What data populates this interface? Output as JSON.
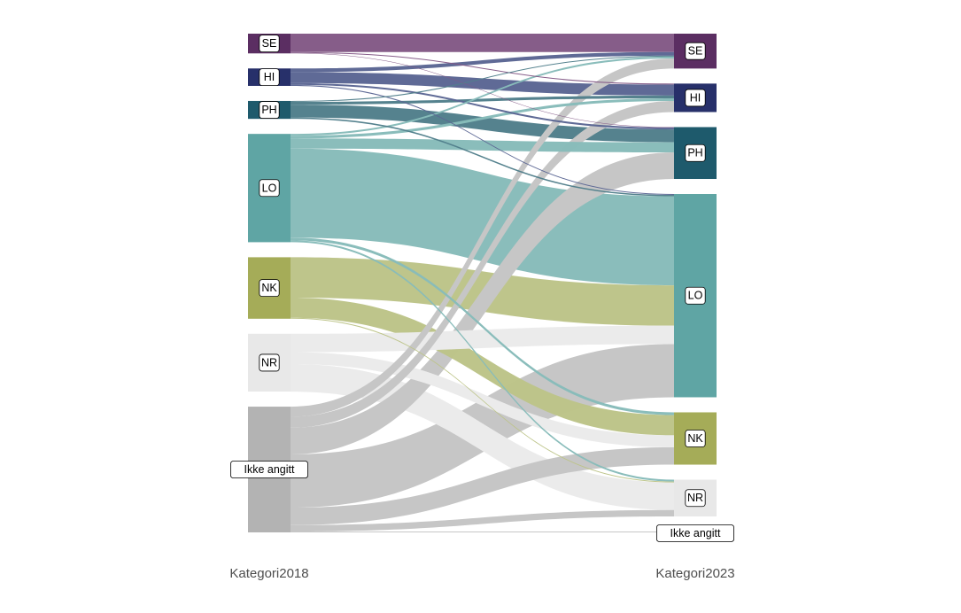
{
  "chart_data": {
    "type": "sankey",
    "axes": [
      "Kategori2018",
      "Kategori2023"
    ],
    "categories": [
      "SE",
      "HI",
      "PH",
      "LO",
      "NK",
      "NR",
      "Ikke angitt"
    ],
    "colors": {
      "SE": "#5b2e62",
      "HI": "#27306a",
      "PH": "#1e5a6c",
      "LO": "#5fa5a4",
      "NK": "#a5ac58",
      "NR": "#e8e8e8",
      "Ikke angitt": "#b3b3b3"
    },
    "flow_colors": {
      "SE": "#845a87",
      "HI": "#5c6794",
      "PH": "#52808c",
      "LO": "#88bcba",
      "NK": "#bdc489",
      "NR": "#ebebeb",
      "Ikke angitt": "#c6c6c6"
    },
    "flows": [
      {
        "from": "SE",
        "to": "SE",
        "value": 20
      },
      {
        "from": "SE",
        "to": "HI",
        "value": 1
      },
      {
        "from": "SE",
        "to": "PH",
        "value": 0.5
      },
      {
        "from": "HI",
        "to": "HI",
        "value": 12
      },
      {
        "from": "HI",
        "to": "SE",
        "value": 4
      },
      {
        "from": "HI",
        "to": "PH",
        "value": 2
      },
      {
        "from": "HI",
        "to": "LO",
        "value": 1
      },
      {
        "from": "PH",
        "to": "PH",
        "value": 14
      },
      {
        "from": "PH",
        "to": "HI",
        "value": 3
      },
      {
        "from": "PH",
        "to": "SE",
        "value": 1
      },
      {
        "from": "PH",
        "to": "LO",
        "value": 1.5
      },
      {
        "from": "LO",
        "to": "SE",
        "value": 2
      },
      {
        "from": "LO",
        "to": "HI",
        "value": 3
      },
      {
        "from": "LO",
        "to": "PH",
        "value": 11
      },
      {
        "from": "LO",
        "to": "LO",
        "value": 97
      },
      {
        "from": "LO",
        "to": "NK",
        "value": 3
      },
      {
        "from": "LO",
        "to": "NR",
        "value": 2
      },
      {
        "from": "NK",
        "to": "LO",
        "value": 44
      },
      {
        "from": "NK",
        "to": "NK",
        "value": 22
      },
      {
        "from": "NK",
        "to": "NR",
        "value": 1
      },
      {
        "from": "NR",
        "to": "LO",
        "value": 20
      },
      {
        "from": "NR",
        "to": "NK",
        "value": 13
      },
      {
        "from": "NR",
        "to": "NR",
        "value": 30
      },
      {
        "from": "Ikke angitt",
        "to": "SE",
        "value": 11
      },
      {
        "from": "Ikke angitt",
        "to": "HI",
        "value": 12
      },
      {
        "from": "Ikke angitt",
        "to": "PH",
        "value": 29
      },
      {
        "from": "Ikke angitt",
        "to": "LO",
        "value": 58
      },
      {
        "from": "Ikke angitt",
        "to": "NK",
        "value": 19
      },
      {
        "from": "Ikke angitt",
        "to": "NR",
        "value": 7
      },
      {
        "from": "Ikke angitt",
        "to": "Ikke angitt",
        "value": 1
      }
    ]
  }
}
